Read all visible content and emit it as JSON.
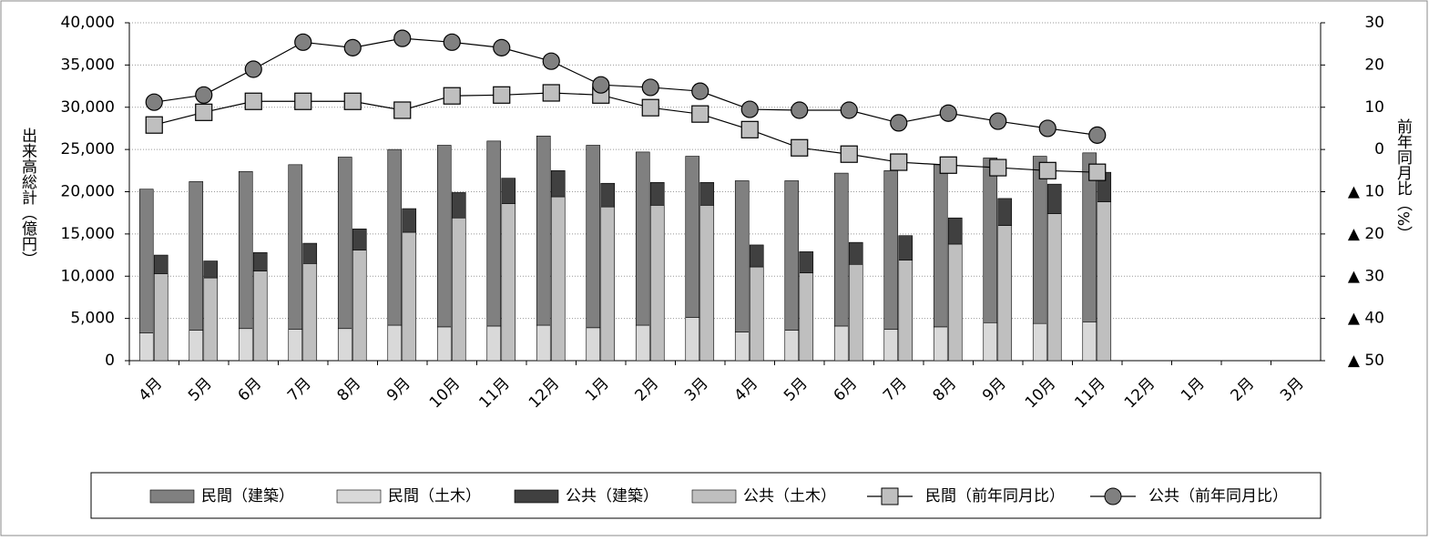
{
  "chart_data": {
    "type": "bar",
    "y_label": "出来高総計（億円）",
    "y2_label": "前年同月比（%）",
    "categories": [
      "4月",
      "5月",
      "6月",
      "7月",
      "8月",
      "9月",
      "10月",
      "11月",
      "12月",
      "1月",
      "2月",
      "3月",
      "4月",
      "5月",
      "6月",
      "7月",
      "8月",
      "9月",
      "10月",
      "11月",
      "12月",
      "1月",
      "2月",
      "3月"
    ],
    "ylim": [
      0,
      40000
    ],
    "yticks": [
      0,
      {
        "value": 5000,
        "label": "5,000"
      },
      {
        "value": 10000,
        "label": "10,000"
      },
      {
        "value": 15000,
        "label": "15,000"
      },
      {
        "value": 20000,
        "label": "20,000"
      },
      {
        "value": 25000,
        "label": "25,000"
      },
      {
        "value": 30000,
        "label": "30,000"
      },
      {
        "value": 35000,
        "label": "35,000"
      },
      {
        "value": 40000,
        "label": "40,000"
      }
    ],
    "y2lim": [
      -50,
      30
    ],
    "y2ticks": [
      {
        "value": -50,
        "label": "▲ 50"
      },
      {
        "value": -40,
        "label": "▲ 40"
      },
      {
        "value": -30,
        "label": "▲ 30"
      },
      {
        "value": -20,
        "label": "▲ 20"
      },
      {
        "value": -10,
        "label": "▲ 10"
      },
      0,
      10,
      20,
      30
    ],
    "grid": true,
    "legend": "bottom",
    "series": [
      {
        "name": "民間（建築）",
        "color": "#808080",
        "kind": "bar",
        "stack": 0,
        "values": [
          17000,
          17600,
          18600,
          19500,
          20300,
          20800,
          21500,
          21900,
          22400,
          21600,
          20500,
          19100,
          17900,
          17700,
          18100,
          18800,
          19200,
          19500,
          19800,
          20000,
          null,
          null,
          null,
          null
        ]
      },
      {
        "name": "民間（土木）",
        "color": "#d9d9d9",
        "kind": "bar",
        "stack": 0,
        "values": [
          3300,
          3600,
          3800,
          3700,
          3800,
          4200,
          4000,
          4100,
          4200,
          3900,
          4200,
          5100,
          3400,
          3600,
          4100,
          3700,
          4000,
          4500,
          4400,
          4600,
          null,
          null,
          null,
          null
        ]
      },
      {
        "name": "公共（建築）",
        "color": "#404040",
        "kind": "bar",
        "stack": 1,
        "values": [
          2200,
          2000,
          2200,
          2400,
          2500,
          2800,
          3000,
          3000,
          3100,
          2800,
          2700,
          2700,
          2600,
          2500,
          2600,
          2900,
          3100,
          3200,
          3500,
          3500,
          null,
          null,
          null,
          null
        ]
      },
      {
        "name": "公共（土木）",
        "color": "#bfbfbf",
        "kind": "bar",
        "stack": 1,
        "values": [
          10300,
          9800,
          10600,
          11500,
          13100,
          15200,
          16900,
          18600,
          19400,
          18200,
          18400,
          18400,
          11100,
          10400,
          11400,
          11900,
          13800,
          16000,
          17400,
          18800,
          null,
          null,
          null,
          null
        ]
      },
      {
        "name": "民間（前年同月比）",
        "color": "#bfbfbf",
        "kind": "line",
        "marker": "square",
        "axis": "y2",
        "values": [
          5.8,
          8.8,
          11.4,
          11.4,
          11.4,
          9.3,
          12.7,
          12.9,
          13.4,
          12.9,
          9.9,
          8.4,
          4.7,
          0.4,
          -1.1,
          -3.0,
          -3.7,
          -4.3,
          -5.0,
          -5.4,
          null,
          null,
          null,
          null
        ]
      },
      {
        "name": "公共（前年同月比）",
        "color": "#808080",
        "kind": "line",
        "marker": "circle",
        "axis": "y2",
        "values": [
          11.2,
          12.9,
          19.0,
          25.4,
          24.1,
          26.3,
          25.4,
          24.1,
          20.9,
          15.3,
          14.7,
          13.8,
          9.5,
          9.3,
          9.3,
          6.3,
          8.6,
          6.7,
          5.0,
          3.4,
          null,
          null,
          null,
          null
        ]
      }
    ]
  }
}
